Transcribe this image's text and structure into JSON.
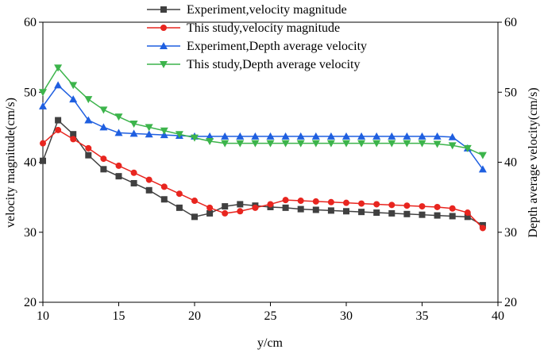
{
  "chart_data": {
    "type": "line",
    "x_label": "y/cm",
    "y_label": "velocity magnitude(cm/s)",
    "y2_label": "Depth average velocity(cm/s)",
    "x": [
      10,
      11,
      12,
      13,
      14,
      15,
      16,
      17,
      18,
      19,
      20,
      21,
      22,
      23,
      24,
      25,
      26,
      27,
      28,
      29,
      30,
      31,
      32,
      33,
      34,
      35,
      36,
      37,
      38,
      39
    ],
    "xlim": [
      10,
      40
    ],
    "xticks": [
      10,
      15,
      20,
      25,
      30,
      35,
      40
    ],
    "ylim": [
      20,
      60
    ],
    "yticks": [
      20,
      30,
      40,
      50,
      60
    ],
    "y2lim": [
      20,
      60
    ],
    "y2ticks": [
      20,
      30,
      40,
      50,
      60
    ],
    "series": [
      {
        "name": "Experiment,velocity magnitude",
        "color": "#404040",
        "marker": "square",
        "values": [
          40.2,
          46,
          44,
          41,
          39,
          38,
          37,
          36,
          34.7,
          33.5,
          32.2,
          32.7,
          33.7,
          34,
          33.8,
          33.6,
          33.5,
          33.3,
          33.2,
          33.1,
          33,
          32.9,
          32.8,
          32.7,
          32.6,
          32.5,
          32.4,
          32.3,
          32.2,
          31
        ]
      },
      {
        "name": "This study,velocity magnitude",
        "color": "#e8251f",
        "marker": "circle",
        "values": [
          42.7,
          44.6,
          43.3,
          42,
          40.5,
          39.5,
          38.5,
          37.5,
          36.5,
          35.5,
          34.5,
          33.5,
          32.7,
          33,
          33.5,
          34,
          34.6,
          34.5,
          34.4,
          34.3,
          34.2,
          34.1,
          34,
          33.9,
          33.8,
          33.7,
          33.6,
          33.4,
          32.8,
          30.6
        ]
      },
      {
        "name": "Experiment,Depth average velocity",
        "color": "#1f5fe0",
        "marker": "triangle-up",
        "axis": "y2",
        "values": [
          48,
          51,
          49,
          46,
          45,
          44.2,
          44.1,
          44,
          43.9,
          43.8,
          43.7,
          43.7,
          43.7,
          43.7,
          43.7,
          43.7,
          43.7,
          43.7,
          43.7,
          43.7,
          43.7,
          43.7,
          43.7,
          43.7,
          43.7,
          43.7,
          43.7,
          43.6,
          42,
          39
        ]
      },
      {
        "name": "This study,Depth average velocity",
        "color": "#3cb44b",
        "marker": "triangle-down",
        "axis": "y2",
        "values": [
          50,
          53.5,
          51,
          49,
          47.5,
          46.5,
          45.5,
          45,
          44.5,
          44,
          43.5,
          43,
          42.7,
          42.7,
          42.7,
          42.7,
          42.7,
          42.7,
          42.7,
          42.7,
          42.7,
          42.7,
          42.7,
          42.7,
          42.7,
          42.7,
          42.6,
          42.4,
          42,
          41
        ]
      }
    ]
  }
}
